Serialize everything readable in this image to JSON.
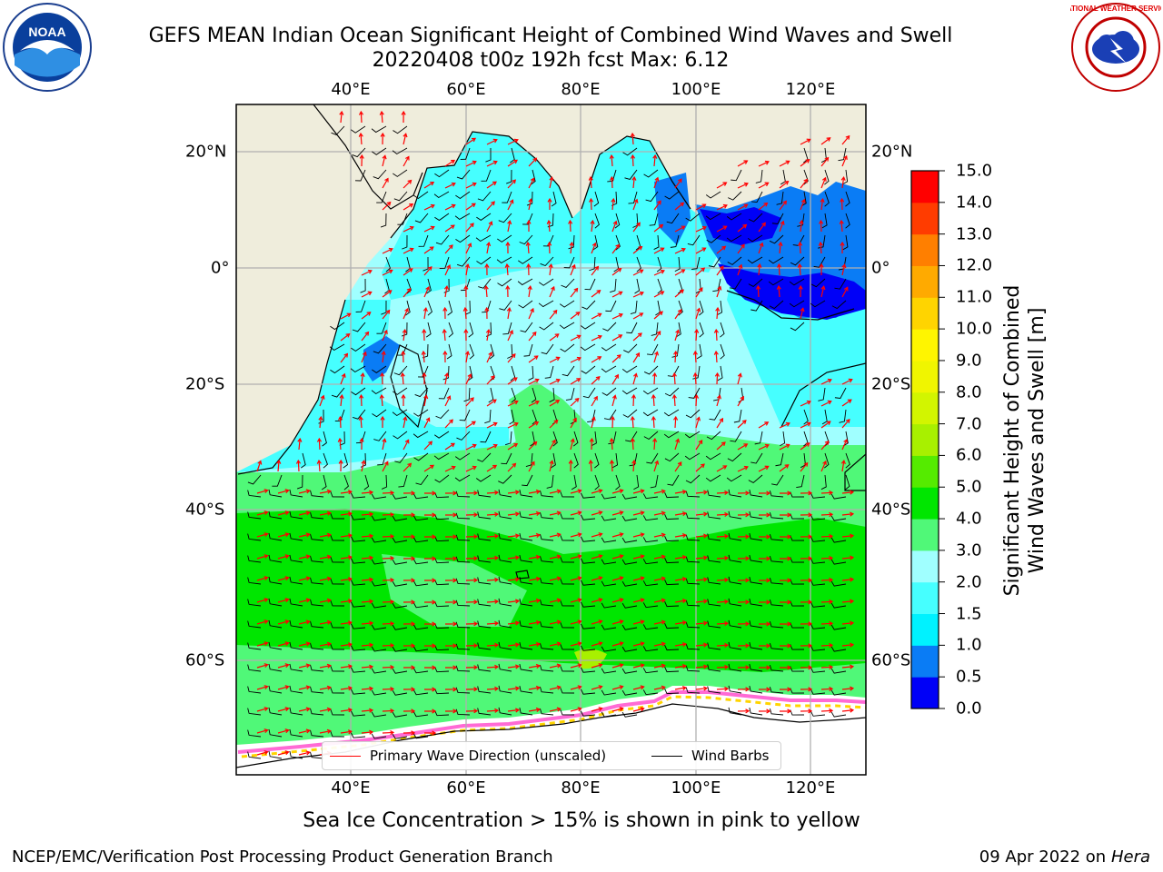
{
  "title": {
    "line1": "GEFS MEAN Indian Ocean Significant Height of Combined Wind Waves and Swell",
    "line2": "20220408 t00z 192h fcst   Max: 6.12"
  },
  "logos": {
    "left_text": "NOAA",
    "right_text": "NATIONAL WEATHER SERVICE"
  },
  "map": {
    "lon_labels": [
      "40°E",
      "60°E",
      "80°E",
      "100°E",
      "120°E"
    ],
    "lat_labels": [
      "20°N",
      "0°",
      "20°S",
      "40°S",
      "60°S"
    ],
    "colors": {
      "land": "#efeddc",
      "grid": "#b0b0b0",
      "arrow": "#ff0000",
      "barb": "#000000"
    }
  },
  "colorbar": {
    "ticks": [
      "0.0",
      "0.5",
      "1.0",
      "1.5",
      "2.0",
      "3.0",
      "4.0",
      "5.0",
      "6.0",
      "7.0",
      "8.0",
      "9.0",
      "10.0",
      "11.0",
      "12.0",
      "13.0",
      "14.0",
      "15.0"
    ],
    "colors": [
      "#0000f7",
      "#0a7cf5",
      "#00f2ff",
      "#46ffff",
      "#a0ffff",
      "#50f878",
      "#00e600",
      "#55eb00",
      "#a8f000",
      "#d2f500",
      "#f0f500",
      "#fff500",
      "#ffd400",
      "#ffaa00",
      "#ff7f00",
      "#ff3c00",
      "#ff0000"
    ],
    "label_line1": "Significant Height of Combined",
    "label_line2": "Wind Waves and Swell [m]"
  },
  "legend": {
    "wave_label": "Primary Wave Direction (unscaled)",
    "barb_label": "Wind Barbs"
  },
  "ice_note": "Sea Ice Concentration > 15% is shown in pink to yellow",
  "footer": {
    "left": "NCEP/EMC/Verification Post Processing Product Generation Branch",
    "right_date": "09 Apr 2022 on",
    "right_host": "Hera"
  }
}
